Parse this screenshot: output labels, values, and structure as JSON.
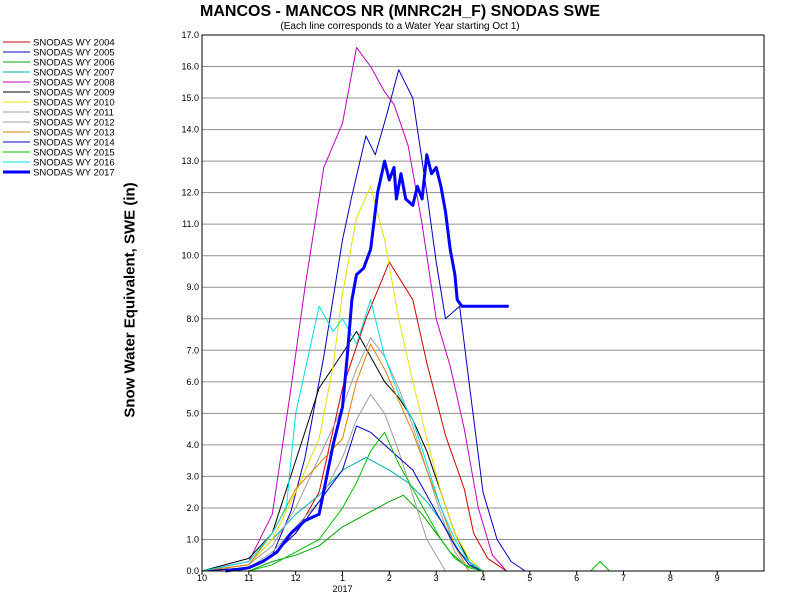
{
  "chart_data": {
    "type": "line",
    "title": "MANCOS - MANCOS NR (MNRC2H_F) SNODAS SWE",
    "subtitle": "(Each line corresponds to a Water Year starting Oct 1)",
    "ylabel": "Snow Water Equivalent, SWE (in)",
    "xlabel": "",
    "ylim": [
      0,
      17
    ],
    "y_ticks": [
      "0.0",
      "1.0",
      "2.0",
      "3.0",
      "4.0",
      "5.0",
      "6.0",
      "7.0",
      "8.0",
      "9.0",
      "10.0",
      "11.0",
      "12.0",
      "13.0",
      "14.0",
      "15.0",
      "16.0",
      "17.0"
    ],
    "x_ticks": [
      "10",
      "11",
      "12",
      "1",
      "2",
      "3",
      "4",
      "5",
      "6",
      "7",
      "8",
      "9"
    ],
    "x_year_label": "2017",
    "grid": true,
    "legend_position": "left",
    "x_unit": "month index from Oct 1 (0 = Oct 1)",
    "series": [
      {
        "name": "SNODAS WY 2004",
        "color": "#d00000",
        "width": 1,
        "x": [
          0,
          1,
          1.5,
          2,
          2.5,
          3,
          3.5,
          4,
          4.5,
          4.8,
          5.2,
          5.6,
          5.8,
          6.1,
          6.5
        ],
        "y": [
          0,
          0.1,
          0.5,
          1.2,
          2.5,
          5.8,
          8.0,
          9.8,
          8.6,
          6.6,
          4.3,
          2.6,
          1.2,
          0.4,
          0
        ]
      },
      {
        "name": "SNODAS WY 2005",
        "color": "#0000c0",
        "width": 1,
        "x": [
          0,
          1,
          1.5,
          1.9,
          2.2,
          2.6,
          3.0,
          3.2,
          3.5,
          3.7,
          3.95,
          4.2,
          4.5,
          4.8,
          5.0,
          5.2,
          5.5,
          5.7,
          6.0,
          6.3,
          6.6,
          6.9
        ],
        "y": [
          0,
          0.1,
          0.5,
          1.9,
          3.6,
          6.8,
          10.5,
          11.9,
          13.8,
          13.2,
          14.5,
          15.9,
          15.0,
          12.0,
          9.8,
          8.0,
          8.4,
          6.0,
          2.5,
          1.0,
          0.3,
          0
        ]
      },
      {
        "name": "SNODAS WY 2006",
        "color": "#00a000",
        "width": 1,
        "x": [
          0,
          1,
          1.5,
          2,
          2.5,
          3,
          3.5,
          4,
          4.3,
          4.7,
          5.0,
          5.3,
          5.6,
          6.0
        ],
        "y": [
          0,
          0,
          0.3,
          0.5,
          0.8,
          1.4,
          1.8,
          2.2,
          2.4,
          1.8,
          1.2,
          0.6,
          0.2,
          0
        ]
      },
      {
        "name": "SNODAS WY 2007",
        "color": "#00b0b0",
        "width": 1,
        "x": [
          0,
          1,
          1.5,
          2,
          2.5,
          3,
          3.5,
          4,
          4.4,
          4.8,
          5.2,
          5.5,
          5.9
        ],
        "y": [
          0,
          0.2,
          1.0,
          1.8,
          2.4,
          3.2,
          3.6,
          3.2,
          2.8,
          2.2,
          1.4,
          0.6,
          0
        ]
      },
      {
        "name": "SNODAS WY 2008",
        "color": "#c000c0",
        "width": 1,
        "x": [
          0,
          1,
          1.5,
          1.9,
          2.2,
          2.6,
          3.0,
          3.3,
          3.6,
          3.9,
          4.1,
          4.4,
          4.7,
          5.0,
          5.3,
          5.6,
          5.9,
          6.2,
          6.5
        ],
        "y": [
          0,
          0.3,
          1.8,
          5.8,
          9.0,
          12.8,
          14.2,
          16.6,
          16.0,
          15.2,
          14.8,
          13.5,
          11.0,
          8.0,
          6.5,
          4.5,
          2.0,
          0.5,
          0
        ]
      },
      {
        "name": "SNODAS WY 2009",
        "color": "#000000",
        "width": 1,
        "x": [
          0,
          1,
          1.5,
          2,
          2.5,
          3,
          3.3,
          3.6,
          3.9,
          4.2,
          4.5,
          4.8,
          5.1,
          5.4,
          5.7,
          6.0
        ],
        "y": [
          0,
          0.4,
          1.2,
          3.5,
          5.8,
          6.9,
          7.6,
          6.8,
          6.0,
          5.5,
          4.8,
          3.8,
          2.5,
          1.2,
          0.3,
          0
        ]
      },
      {
        "name": "SNODAS WY 2010",
        "color": "#e8e000",
        "width": 1,
        "x": [
          0,
          1,
          1.5,
          2,
          2.5,
          2.8,
          3.0,
          3.3,
          3.6,
          3.9,
          4.2,
          4.5,
          4.8,
          5.1,
          5.4,
          5.7,
          6.0
        ],
        "y": [
          0,
          0.2,
          1.0,
          2.5,
          4.2,
          6.5,
          8.8,
          11.2,
          12.2,
          10.5,
          8.0,
          6.0,
          4.2,
          2.5,
          1.2,
          0.4,
          0
        ]
      },
      {
        "name": "SNODAS WY 2011",
        "color": "#a0a0a0",
        "width": 1,
        "x": [
          0,
          1,
          1.5,
          2,
          2.5,
          3,
          3.3,
          3.6,
          3.9,
          4.2,
          4.5,
          4.8,
          5.1,
          5.4,
          5.7
        ],
        "y": [
          0,
          0.2,
          0.8,
          2.0,
          3.6,
          5.2,
          6.4,
          7.4,
          6.8,
          5.8,
          4.6,
          3.2,
          1.8,
          0.6,
          0
        ]
      },
      {
        "name": "SNODAS WY 2012",
        "color": "#a0a0a0",
        "width": 1,
        "x": [
          0,
          1,
          1.5,
          2,
          2.5,
          3,
          3.3,
          3.6,
          3.9,
          4.2,
          4.5,
          4.8,
          5.2
        ],
        "y": [
          0,
          0.1,
          0.6,
          1.4,
          2.2,
          3.6,
          4.8,
          5.6,
          5.0,
          3.8,
          2.4,
          1.0,
          0
        ]
      },
      {
        "name": "SNODAS WY 2013",
        "color": "#e08000",
        "width": 1,
        "x": [
          0,
          1,
          1.5,
          2,
          2.5,
          3,
          3.3,
          3.6,
          3.9,
          4.2,
          4.5,
          4.8,
          5.1,
          5.4,
          5.7
        ],
        "y": [
          0,
          0.2,
          1.2,
          2.6,
          3.4,
          4.2,
          6.0,
          7.2,
          6.4,
          5.4,
          4.4,
          3.2,
          2.0,
          0.8,
          0
        ]
      },
      {
        "name": "SNODAS WY 2014",
        "color": "#0000c0",
        "width": 1,
        "x": [
          0,
          1,
          1.5,
          2,
          2.5,
          3,
          3.3,
          3.6,
          3.9,
          4.2,
          4.5,
          4.8,
          5.1,
          5.4,
          5.7,
          6.0
        ],
        "y": [
          0,
          0.1,
          0.5,
          1.2,
          2.2,
          3.2,
          4.6,
          4.4,
          4.0,
          3.6,
          3.2,
          2.4,
          1.6,
          0.8,
          0.2,
          0
        ]
      },
      {
        "name": "SNODAS WY 2015",
        "color": "#00c000",
        "width": 1,
        "x": [
          0,
          1,
          1.5,
          2,
          2.5,
          3,
          3.3,
          3.6,
          3.9,
          4.2,
          4.5,
          4.8,
          5.1,
          5.4,
          5.7,
          6.0,
          8.3,
          8.5,
          8.7
        ],
        "y": [
          0,
          0,
          0.2,
          0.6,
          1.0,
          2.0,
          2.8,
          3.8,
          4.4,
          3.4,
          2.6,
          1.8,
          1.0,
          0.4,
          0.1,
          0,
          0,
          0.3,
          0
        ]
      },
      {
        "name": "SNODAS WY 2016",
        "color": "#00e0e0",
        "width": 1,
        "x": [
          0,
          1,
          1.5,
          1.8,
          2,
          2.5,
          2.8,
          3,
          3.3,
          3.6,
          3.9,
          4.2,
          4.5,
          4.8,
          5.1,
          5.4,
          5.7,
          6.0
        ],
        "y": [
          0,
          0.3,
          1.2,
          2.0,
          5.0,
          8.4,
          7.6,
          8.0,
          7.2,
          8.6,
          6.8,
          5.6,
          4.8,
          3.4,
          2.0,
          1.0,
          0.3,
          0
        ]
      },
      {
        "name": "SNODAS WY 2017",
        "color": "#0000ff",
        "width": 3,
        "x": [
          0.5,
          1,
          1.3,
          1.6,
          1.9,
          2.2,
          2.5,
          2.8,
          3.0,
          3.1,
          3.2,
          3.3,
          3.45,
          3.6,
          3.75,
          3.9,
          4.0,
          4.1,
          4.15,
          4.25,
          4.35,
          4.5,
          4.6,
          4.7,
          4.8,
          4.9,
          5.0,
          5.1,
          5.2,
          5.3,
          5.4,
          5.45,
          5.55,
          5.65,
          5.75,
          5.85,
          5.95,
          6.05,
          6.15,
          6.25,
          6.35,
          6.45,
          6.55
        ],
        "y": [
          0,
          0.1,
          0.3,
          0.6,
          1.2,
          1.6,
          1.8,
          4.0,
          5.2,
          6.8,
          8.6,
          9.4,
          9.6,
          10.2,
          12.0,
          13.0,
          12.4,
          12.8,
          11.8,
          12.6,
          11.8,
          11.6,
          12.2,
          11.8,
          13.2,
          12.6,
          12.8,
          12.2,
          11.4,
          10.2,
          9.4,
          8.6,
          8.4,
          8.4,
          8.4,
          8.4,
          8.4,
          8.4,
          8.4,
          8.4,
          8.4,
          8.4,
          8.4
        ]
      }
    ]
  }
}
